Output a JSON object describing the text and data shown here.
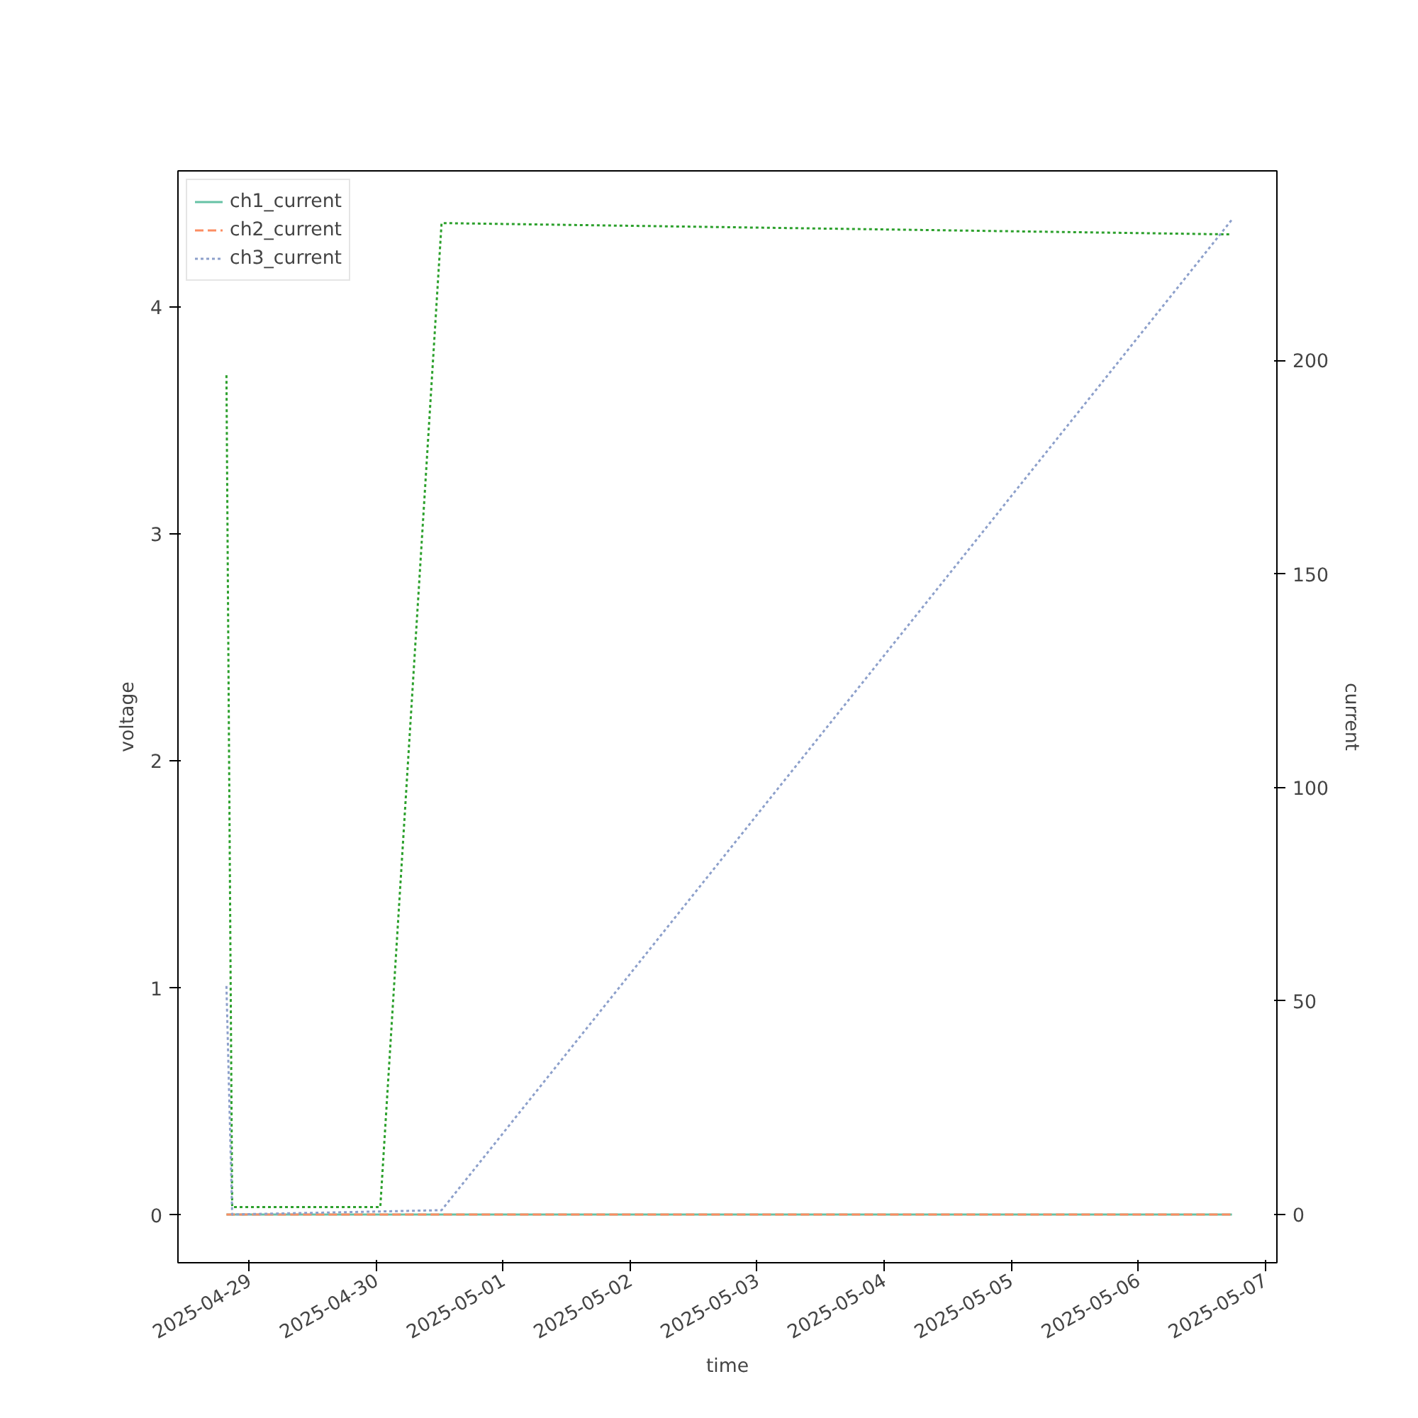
{
  "chart_data": {
    "type": "line",
    "xlabel": "time",
    "ylabel": "voltage",
    "y2label": "current",
    "xlim": [
      "2025-04-28T10:30",
      "2025-05-07T02:15"
    ],
    "xticks": [
      "2025-04-29",
      "2025-04-30",
      "2025-05-01",
      "2025-05-02",
      "2025-05-03",
      "2025-05-04",
      "2025-05-05",
      "2025-05-06",
      "2025-05-07"
    ],
    "ylim": [
      -0.21,
      4.6
    ],
    "yticks": [
      0,
      1,
      2,
      3,
      4
    ],
    "y2lim": [
      -11.3,
      244.4
    ],
    "y2ticks": [
      0,
      50,
      100,
      150,
      200
    ],
    "grid": false,
    "legend": "top left",
    "series": [
      {
        "color": "#2ca02c",
        "line_style": "dotted",
        "x": [
          "2025-04-28T19:40",
          "2025-04-28T20:45",
          "2025-04-30T00:45",
          "2025-04-30T12:20",
          "2025-05-06T17:45"
        ],
        "values": [
          3.7,
          0.035,
          0.035,
          4.37,
          4.32
        ]
      },
      {
        "name": "ch1_current",
        "color": "#66c2a5",
        "line_style": "solid",
        "axis": "y2",
        "x": [
          "2025-04-28T19:40",
          "2025-05-06T17:45"
        ],
        "values": [
          0,
          0
        ]
      },
      {
        "name": "ch2_current",
        "color": "#fc8d62",
        "line_style": "dashed",
        "axis": "y2",
        "x": [
          "2025-04-28T19:40",
          "2025-05-06T17:45"
        ],
        "values": [
          0,
          0
        ]
      },
      {
        "name": "ch3_current",
        "color": "#8da0cb",
        "line_style": "dotted",
        "axis": "y2",
        "x": [
          "2025-04-28T19:40",
          "2025-04-28T20:45",
          "2025-04-30T12:20",
          "2025-05-06T17:45"
        ],
        "values": [
          53.5,
          0,
          1,
          233
        ]
      }
    ]
  }
}
